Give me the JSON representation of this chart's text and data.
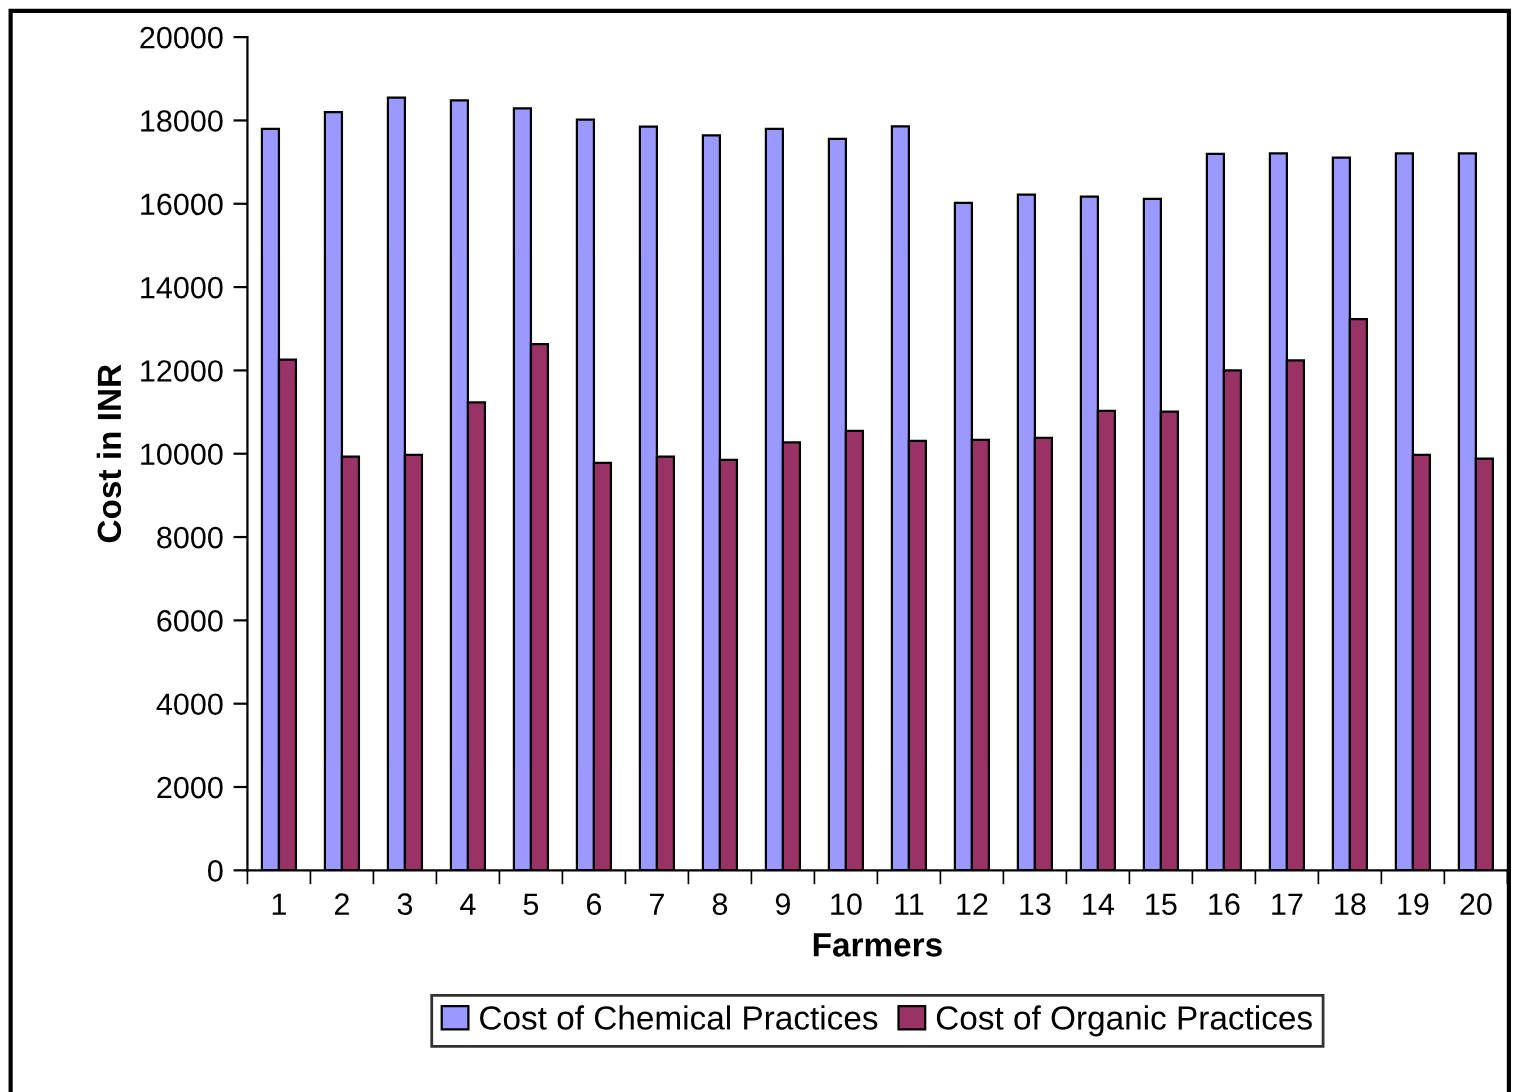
{
  "chart_data": {
    "type": "bar",
    "xlabel": "Farmers",
    "ylabel": "Cost in INR",
    "categories": [
      "1",
      "2",
      "3",
      "4",
      "5",
      "6",
      "7",
      "8",
      "9",
      "10",
      "11",
      "12",
      "13",
      "14",
      "15",
      "16",
      "17",
      "18",
      "19",
      "20"
    ],
    "series": [
      {
        "name": "Cost of Chemical Practices",
        "color": "#9999ff",
        "values": [
          17800,
          18200,
          18550,
          18480,
          18290,
          18020,
          17850,
          17640,
          17800,
          17560,
          17860,
          16020,
          16220,
          16170,
          16120,
          17200,
          17210,
          17110,
          17210,
          17210
        ]
      },
      {
        "name": "Cost of Organic Practices",
        "color": "#993366",
        "values": [
          12260,
          9930,
          9970,
          11230,
          12630,
          9780,
          9930,
          9850,
          10270,
          10550,
          10310,
          10330,
          10380,
          11030,
          11010,
          12000,
          12240,
          13230,
          9970,
          9880
        ]
      }
    ],
    "ylim": [
      0,
      20000
    ],
    "yticks": [
      0,
      2000,
      4000,
      6000,
      8000,
      10000,
      12000,
      14000,
      16000,
      18000,
      20000
    ],
    "grid": false,
    "legend": "bottom"
  }
}
